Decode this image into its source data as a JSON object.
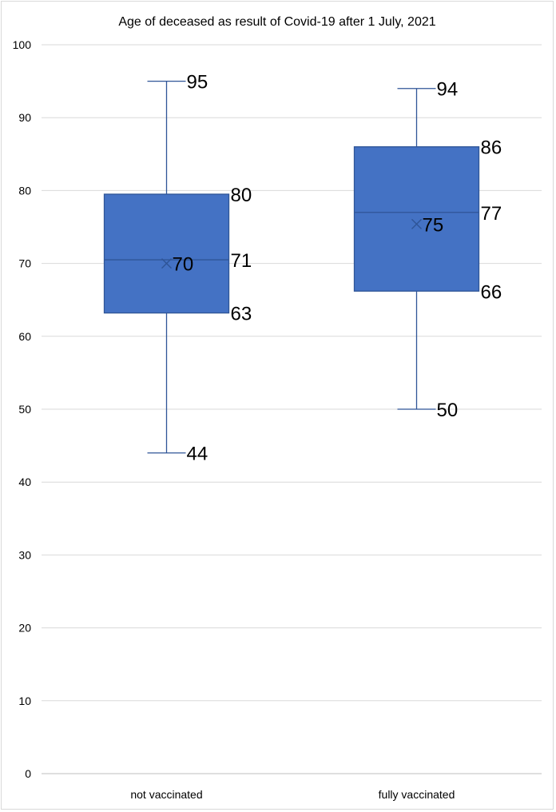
{
  "chart_data": {
    "type": "boxplot",
    "title": "Age of deceased as result of Covid-19 after 1 July, 2021",
    "xlabel": "",
    "ylabel": "",
    "ylim": [
      0,
      100
    ],
    "yticks": [
      0,
      10,
      20,
      30,
      40,
      50,
      60,
      70,
      80,
      90,
      100
    ],
    "ytick_labels": [
      "0",
      "10",
      "20",
      "30",
      "40",
      "50",
      "60",
      "70",
      "80",
      "90",
      "100"
    ],
    "grid": true,
    "legend": "none",
    "box_color": "#4472C4",
    "line_color": "#2F5597",
    "categories": [
      "not vaccinated",
      "fully vaccinated"
    ],
    "boxes": [
      {
        "category": "not vaccinated",
        "min": 44,
        "q1": 63.2,
        "median": 70.5,
        "q3": 79.5,
        "max": 95,
        "mean": 70,
        "labels": {
          "min": "44",
          "q1": "63",
          "median": "71",
          "q3": "80",
          "max": "95",
          "mean": "70"
        }
      },
      {
        "category": "fully vaccinated",
        "min": 50,
        "q1": 66.2,
        "median": 77,
        "q3": 86,
        "max": 94,
        "mean": 75.4,
        "labels": {
          "min": "50",
          "q1": "66",
          "median": "77",
          "q3": "86",
          "max": "94",
          "mean": "75"
        }
      }
    ]
  }
}
